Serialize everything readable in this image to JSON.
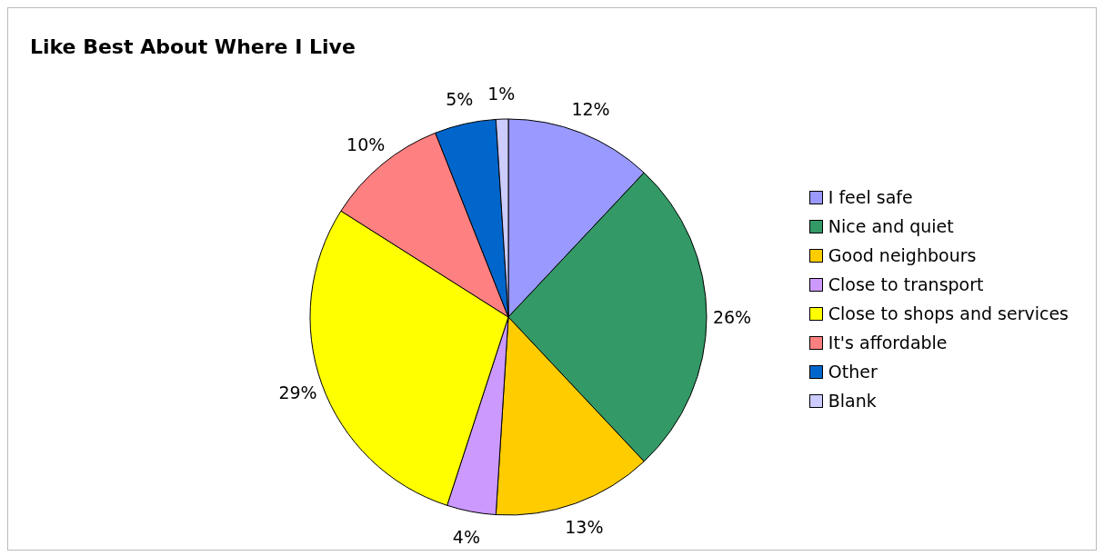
{
  "chart_data": {
    "type": "pie",
    "title": "Like Best About Where I Live",
    "categories": [
      "I feel safe",
      "Nice and quiet",
      "Good neighbours",
      "Close to transport",
      "Close to shops and services",
      "It's affordable",
      "Other",
      "Blank"
    ],
    "values": [
      12,
      26,
      13,
      4,
      29,
      10,
      5,
      1
    ],
    "colors": [
      "#9999ff",
      "#339966",
      "#ffcc00",
      "#cc99ff",
      "#ffff00",
      "#ff8080",
      "#0066cc",
      "#ccccff"
    ],
    "value_labels": [
      "12%",
      "26%",
      "13%",
      "4%",
      "29%",
      "10%",
      "5%",
      "1%"
    ],
    "legend": "right"
  }
}
